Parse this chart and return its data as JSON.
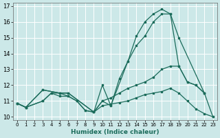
{
  "xlabel": "Humidex (Indice chaleur)",
  "bg_color": "#cce8e8",
  "grid_color": "#ffffff",
  "line_color": "#1a6b5a",
  "ylim": [
    9.8,
    17.2
  ],
  "xlim": [
    -0.5,
    23.5
  ],
  "yticks": [
    10,
    11,
    12,
    13,
    14,
    15,
    16,
    17
  ],
  "xticks": [
    0,
    1,
    2,
    3,
    4,
    5,
    6,
    7,
    8,
    9,
    10,
    11,
    12,
    13,
    14,
    15,
    16,
    17,
    18,
    19,
    20,
    21,
    22,
    23
  ],
  "lines": [
    {
      "x": [
        0,
        1,
        3,
        5,
        6,
        9,
        10,
        11,
        12,
        13,
        14,
        15,
        16,
        17,
        18,
        19,
        22
      ],
      "y": [
        10.85,
        10.6,
        11.7,
        11.5,
        11.5,
        10.3,
        12.0,
        10.7,
        12.4,
        13.5,
        15.1,
        16.0,
        16.5,
        16.8,
        16.5,
        15.0,
        11.5
      ]
    },
    {
      "x": [
        0,
        1,
        3,
        5,
        6,
        9,
        10,
        11,
        13,
        14,
        15,
        16,
        17,
        18,
        19,
        20,
        21,
        22
      ],
      "y": [
        10.85,
        10.6,
        11.7,
        11.5,
        11.5,
        10.3,
        11.0,
        10.7,
        13.5,
        14.5,
        15.1,
        16.0,
        16.5,
        16.5,
        13.2,
        12.2,
        12.0,
        11.5
      ]
    },
    {
      "x": [
        0,
        1,
        3,
        4,
        5,
        6,
        7,
        8,
        9,
        10,
        11,
        12,
        13,
        14,
        15,
        16,
        17,
        18,
        19,
        20,
        21,
        22,
        23
      ],
      "y": [
        10.85,
        10.6,
        11.0,
        11.5,
        11.5,
        11.3,
        11.0,
        10.4,
        10.3,
        11.0,
        11.2,
        11.5,
        11.8,
        12.0,
        12.2,
        12.5,
        13.0,
        13.2,
        13.2,
        12.2,
        12.0,
        11.5,
        10.0
      ]
    },
    {
      "x": [
        0,
        1,
        3,
        4,
        5,
        6,
        7,
        8,
        9,
        10,
        11,
        12,
        13,
        14,
        15,
        16,
        17,
        18,
        19,
        20,
        21,
        22,
        23
      ],
      "y": [
        10.85,
        10.6,
        11.0,
        11.5,
        11.3,
        11.3,
        11.0,
        10.4,
        10.3,
        10.7,
        10.8,
        10.9,
        11.0,
        11.2,
        11.4,
        11.5,
        11.6,
        11.8,
        11.5,
        11.0,
        10.5,
        10.2,
        10.0
      ]
    }
  ]
}
